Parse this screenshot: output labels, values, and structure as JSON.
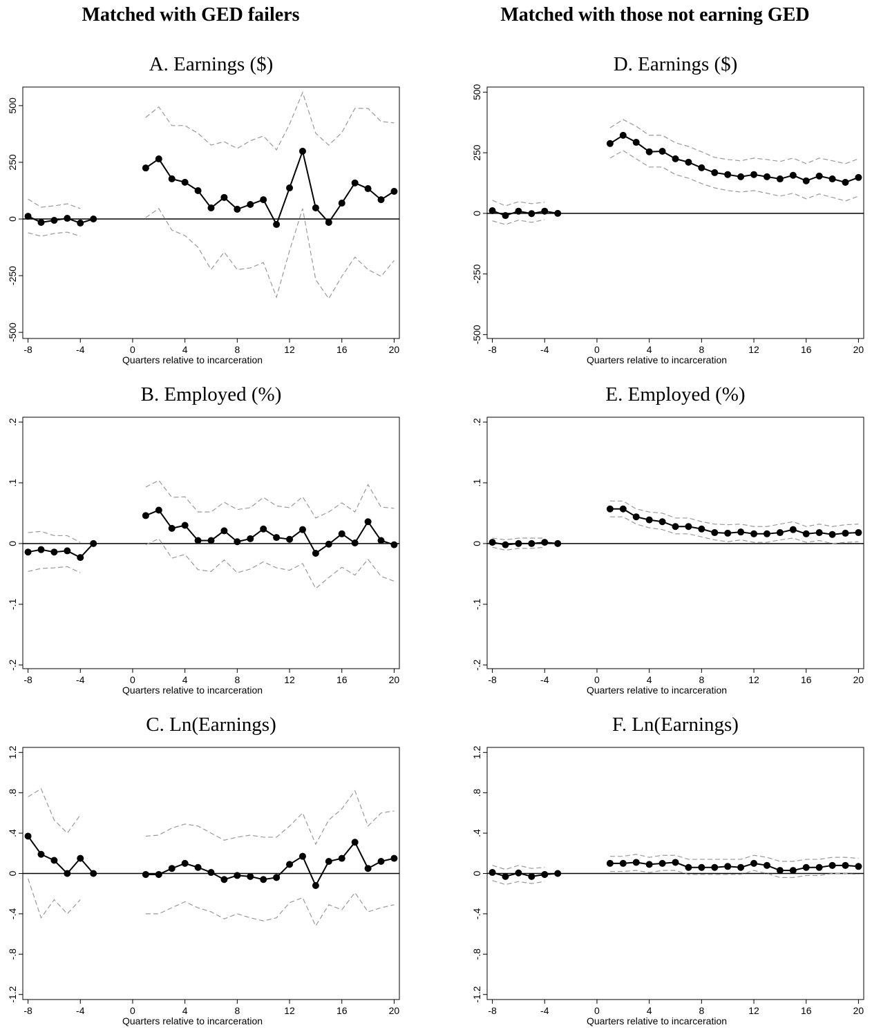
{
  "headers": [
    "Matched with GED failers",
    "Matched with those not earning GED"
  ],
  "chart_data": [
    {
      "type": "line",
      "title": "A. Earnings ($)",
      "x_label": "Quarters relative to incarceration",
      "x": [
        -8,
        -7,
        -6,
        -5,
        -4,
        -3,
        -2,
        -1,
        0,
        1,
        2,
        3,
        4,
        5,
        6,
        7,
        8,
        9,
        10,
        11,
        12,
        13,
        14,
        15,
        16,
        17,
        18,
        19,
        20
      ],
      "xlim": [
        -8.4,
        20.4
      ],
      "xticks": [
        -8,
        -4,
        0,
        4,
        8,
        12,
        16,
        20
      ],
      "ylim": [
        -527,
        582
      ],
      "yticks": [
        -500,
        -250,
        0,
        250,
        500
      ],
      "refline": 0,
      "series": [
        {
          "color": "#000000",
          "style": "solid",
          "markers": true,
          "values": [
            12,
            -15,
            -6,
            3,
            -18,
            0,
            null,
            null,
            null,
            225,
            265,
            177,
            162,
            125,
            49,
            95,
            43,
            64,
            85,
            -24,
            137,
            299,
            49,
            -15,
            70,
            159,
            134,
            85,
            122
          ]
        },
        {
          "color": "#999999",
          "style": "dashed",
          "markers": false,
          "values": [
            88,
            52,
            58,
            67,
            46,
            null,
            null,
            null,
            null,
            448,
            494,
            412,
            412,
            378,
            326,
            341,
            311,
            345,
            366,
            305,
            418,
            558,
            378,
            326,
            381,
            488,
            488,
            430,
            424
          ]
        },
        {
          "color": "#999999",
          "style": "dashed",
          "markers": false,
          "values": [
            -61,
            -76,
            -64,
            -58,
            -76,
            null,
            null,
            null,
            null,
            6,
            46,
            -49,
            -73,
            -125,
            -223,
            -146,
            -223,
            -216,
            -192,
            -345,
            -140,
            46,
            -268,
            -351,
            -253,
            -168,
            -223,
            -253,
            -183
          ]
        }
      ]
    },
    {
      "type": "line",
      "title": "B. Employed (%)",
      "x_label": "Quarters relative to incarceration",
      "x": [
        -8,
        -7,
        -6,
        -5,
        -4,
        -3,
        -2,
        -1,
        0,
        1,
        2,
        3,
        4,
        5,
        6,
        7,
        8,
        9,
        10,
        11,
        12,
        13,
        14,
        15,
        16,
        17,
        18,
        19,
        20
      ],
      "xlim": [
        -8.4,
        20.4
      ],
      "xticks": [
        -8,
        -4,
        0,
        4,
        8,
        12,
        16,
        20
      ],
      "ylim": [
        -0.206,
        0.208
      ],
      "yticks": [
        {
          "value": -0.2,
          "label": "-.2"
        },
        {
          "value": -0.1,
          "label": "-.1"
        },
        0,
        {
          "value": 0.1,
          "label": ".1"
        },
        {
          "value": 0.2,
          "label": ".2"
        }
      ],
      "refline": 0,
      "series": [
        {
          "color": "#000000",
          "style": "solid",
          "markers": true,
          "values": [
            -0.014,
            -0.01,
            -0.014,
            -0.012,
            -0.023,
            0,
            null,
            null,
            null,
            0.046,
            0.055,
            0.025,
            0.03,
            0.005,
            0.005,
            0.021,
            0.003,
            0.008,
            0.024,
            0.01,
            0.007,
            0.023,
            -0.016,
            -0.001,
            0.016,
            0.001,
            0.036,
            0.005,
            -0.002
          ]
        },
        {
          "color": "#999999",
          "style": "dashed",
          "markers": false,
          "values": [
            0.018,
            0.02,
            0.013,
            0.013,
            0.002,
            null,
            null,
            null,
            null,
            0.093,
            0.104,
            0.076,
            0.077,
            0.052,
            0.052,
            0.068,
            0.056,
            0.059,
            0.076,
            0.062,
            0.059,
            0.077,
            0.042,
            0.052,
            0.067,
            0.052,
            0.097,
            0.06,
            0.058
          ]
        },
        {
          "color": "#999999",
          "style": "dashed",
          "markers": false,
          "values": [
            -0.046,
            -0.041,
            -0.04,
            -0.038,
            -0.048,
            null,
            null,
            null,
            null,
            -0.002,
            0.008,
            -0.024,
            -0.018,
            -0.043,
            -0.046,
            -0.027,
            -0.048,
            -0.042,
            -0.03,
            -0.04,
            -0.044,
            -0.033,
            -0.074,
            -0.056,
            -0.039,
            -0.052,
            -0.026,
            -0.054,
            -0.062
          ]
        }
      ]
    },
    {
      "type": "line",
      "title": "C. Ln(Earnings)",
      "x_label": "Quarters relative to incarceration",
      "x": [
        -8,
        -7,
        -6,
        -5,
        -4,
        -3,
        -2,
        -1,
        0,
        1,
        2,
        3,
        4,
        5,
        6,
        7,
        8,
        9,
        10,
        11,
        12,
        13,
        14,
        15,
        16,
        17,
        18,
        19,
        20
      ],
      "xlim": [
        -8.4,
        20.4
      ],
      "xticks": [
        -8,
        -4,
        0,
        4,
        8,
        12,
        16,
        20
      ],
      "ylim": [
        -1.25,
        1.25
      ],
      "yticks": [
        -1.2,
        {
          "value": -0.8,
          "label": "-.8"
        },
        {
          "value": -0.4,
          "label": "-.4"
        },
        0,
        {
          "value": 0.4,
          "label": ".4"
        },
        {
          "value": 0.8,
          "label": ".8"
        },
        1.2
      ],
      "refline": 0,
      "series": [
        {
          "color": "#000000",
          "style": "solid",
          "markers": true,
          "values": [
            0.37,
            0.19,
            0.13,
            0.0,
            0.15,
            0,
            null,
            null,
            null,
            -0.01,
            -0.01,
            0.05,
            0.1,
            0.06,
            0.01,
            -0.06,
            -0.02,
            -0.03,
            -0.06,
            -0.04,
            0.09,
            0.17,
            -0.12,
            0.12,
            0.15,
            0.31,
            0.05,
            0.12,
            0.15
          ]
        },
        {
          "color": "#999999",
          "style": "dashed",
          "markers": false,
          "values": [
            0.76,
            0.84,
            0.53,
            0.4,
            0.58,
            null,
            null,
            null,
            null,
            0.37,
            0.38,
            0.45,
            0.49,
            0.47,
            0.4,
            0.33,
            0.36,
            0.38,
            0.36,
            0.36,
            0.47,
            0.6,
            0.29,
            0.53,
            0.64,
            0.82,
            0.47,
            0.6,
            0.62
          ]
        },
        {
          "color": "#999999",
          "style": "dashed",
          "markers": false,
          "values": [
            -0.05,
            -0.44,
            -0.26,
            -0.4,
            -0.26,
            null,
            null,
            null,
            null,
            -0.4,
            -0.4,
            -0.34,
            -0.28,
            -0.34,
            -0.38,
            -0.45,
            -0.4,
            -0.44,
            -0.47,
            -0.44,
            -0.29,
            -0.24,
            -0.52,
            -0.31,
            -0.36,
            -0.19,
            -0.38,
            -0.34,
            -0.31
          ]
        }
      ]
    },
    {
      "type": "line",
      "title": "D. Earnings ($)",
      "x_label": "Quarters relative to incarceration",
      "x": [
        -8,
        -7,
        -6,
        -5,
        -4,
        -3,
        -2,
        -1,
        0,
        1,
        2,
        3,
        4,
        5,
        6,
        7,
        8,
        9,
        10,
        11,
        12,
        13,
        14,
        15,
        16,
        17,
        18,
        19,
        20
      ],
      "xlim": [
        -8.4,
        20.4
      ],
      "xticks": [
        -8,
        -4,
        0,
        4,
        8,
        12,
        16,
        20
      ],
      "ylim": [
        -516,
        521
      ],
      "yticks": [
        -500,
        -250,
        0,
        250,
        500
      ],
      "refline": 0,
      "series": [
        {
          "color": "#000000",
          "style": "solid",
          "markers": true,
          "values": [
            11,
            -9,
            9,
            -1,
            9,
            0,
            null,
            null,
            null,
            288,
            322,
            293,
            254,
            256,
            225,
            211,
            188,
            168,
            160,
            151,
            160,
            151,
            142,
            157,
            134,
            154,
            142,
            128,
            148
          ]
        },
        {
          "color": "#999999",
          "style": "dashed",
          "markers": false,
          "values": [
            54,
            31,
            48,
            40,
            46,
            null,
            null,
            null,
            null,
            353,
            387,
            359,
            322,
            322,
            291,
            276,
            254,
            231,
            222,
            217,
            228,
            222,
            214,
            228,
            205,
            228,
            217,
            205,
            225
          ]
        },
        {
          "color": "#999999",
          "style": "dashed",
          "markers": false,
          "values": [
            -31,
            -46,
            -28,
            -37,
            -26,
            null,
            null,
            null,
            null,
            228,
            259,
            225,
            191,
            191,
            160,
            145,
            123,
            105,
            94,
            88,
            94,
            83,
            71,
            83,
            60,
            80,
            66,
            51,
            71
          ]
        }
      ]
    },
    {
      "type": "line",
      "title": "E. Employed (%)",
      "x_label": "Quarters relative to incarceration",
      "x": [
        -8,
        -7,
        -6,
        -5,
        -4,
        -3,
        -2,
        -1,
        0,
        1,
        2,
        3,
        4,
        5,
        6,
        7,
        8,
        9,
        10,
        11,
        12,
        13,
        14,
        15,
        16,
        17,
        18,
        19,
        20
      ],
      "xlim": [
        -8.4,
        20.4
      ],
      "xticks": [
        -8,
        -4,
        0,
        4,
        8,
        12,
        16,
        20
      ],
      "ylim": [
        -0.206,
        0.208
      ],
      "yticks": [
        {
          "value": -0.2,
          "label": "-.2"
        },
        {
          "value": -0.1,
          "label": "-.1"
        },
        0,
        {
          "value": 0.1,
          "label": ".1"
        },
        {
          "value": 0.2,
          "label": ".2"
        }
      ],
      "refline": 0,
      "series": [
        {
          "color": "#000000",
          "style": "solid",
          "markers": true,
          "values": [
            0.002,
            -0.002,
            0.0,
            0.0,
            0.002,
            0,
            null,
            null,
            null,
            0.057,
            0.057,
            0.044,
            0.039,
            0.036,
            0.028,
            0.028,
            0.024,
            0.018,
            0.017,
            0.019,
            0.016,
            0.016,
            0.018,
            0.023,
            0.016,
            0.018,
            0.015,
            0.017,
            0.018
          ]
        },
        {
          "color": "#999999",
          "style": "dashed",
          "markers": false,
          "values": [
            0.009,
            0.006,
            0.009,
            0.009,
            0.009,
            null,
            null,
            null,
            null,
            0.07,
            0.07,
            0.057,
            0.052,
            0.05,
            0.042,
            0.042,
            0.036,
            0.032,
            0.031,
            0.032,
            0.028,
            0.028,
            0.032,
            0.036,
            0.028,
            0.032,
            0.028,
            0.031,
            0.032
          ]
        },
        {
          "color": "#999999",
          "style": "dashed",
          "markers": false,
          "values": [
            -0.006,
            -0.011,
            -0.008,
            -0.008,
            -0.006,
            null,
            null,
            null,
            null,
            0.044,
            0.044,
            0.032,
            0.026,
            0.023,
            0.016,
            0.016,
            0.011,
            0.006,
            0.003,
            0.006,
            0.002,
            0.002,
            0.006,
            0.009,
            0.002,
            0.005,
            0.0,
            0.002,
            0.003
          ]
        }
      ]
    },
    {
      "type": "line",
      "title": "F. Ln(Earnings)",
      "x_label": "Quarters relative to incarceration",
      "x": [
        -8,
        -7,
        -6,
        -5,
        -4,
        -3,
        -2,
        -1,
        0,
        1,
        2,
        3,
        4,
        5,
        6,
        7,
        8,
        9,
        10,
        11,
        12,
        13,
        14,
        15,
        16,
        17,
        18,
        19,
        20
      ],
      "xlim": [
        -8.4,
        20.4
      ],
      "xticks": [
        -8,
        -4,
        0,
        4,
        8,
        12,
        16,
        20
      ],
      "ylim": [
        -1.25,
        1.25
      ],
      "yticks": [
        -1.2,
        {
          "value": -0.8,
          "label": "-.8"
        },
        {
          "value": -0.4,
          "label": "-.4"
        },
        0,
        {
          "value": 0.4,
          "label": ".4"
        },
        {
          "value": 0.8,
          "label": ".8"
        },
        1.2
      ],
      "refline": 0,
      "series": [
        {
          "color": "#000000",
          "style": "solid",
          "markers": true,
          "values": [
            0.01,
            -0.03,
            0.005,
            -0.03,
            -0.01,
            0,
            null,
            null,
            null,
            0.1,
            0.1,
            0.11,
            0.09,
            0.1,
            0.11,
            0.06,
            0.06,
            0.06,
            0.07,
            0.06,
            0.1,
            0.08,
            0.03,
            0.03,
            0.06,
            0.06,
            0.08,
            0.08,
            0.07
          ]
        },
        {
          "color": "#999999",
          "style": "dashed",
          "markers": false,
          "values": [
            0.08,
            0.04,
            0.08,
            0.05,
            0.06,
            null,
            null,
            null,
            null,
            0.17,
            0.17,
            0.19,
            0.16,
            0.18,
            0.18,
            0.14,
            0.14,
            0.14,
            0.14,
            0.14,
            0.18,
            0.16,
            0.12,
            0.12,
            0.14,
            0.14,
            0.16,
            0.16,
            0.15
          ]
        },
        {
          "color": "#999999",
          "style": "dashed",
          "markers": false,
          "values": [
            -0.07,
            -0.11,
            -0.08,
            -0.1,
            -0.08,
            null,
            null,
            null,
            null,
            0.02,
            0.02,
            0.03,
            0.01,
            0.03,
            0.03,
            -0.01,
            -0.01,
            -0.01,
            -0.01,
            -0.01,
            0.03,
            0.0,
            -0.04,
            -0.04,
            -0.02,
            -0.02,
            0.0,
            0.0,
            -0.01
          ]
        }
      ]
    }
  ]
}
